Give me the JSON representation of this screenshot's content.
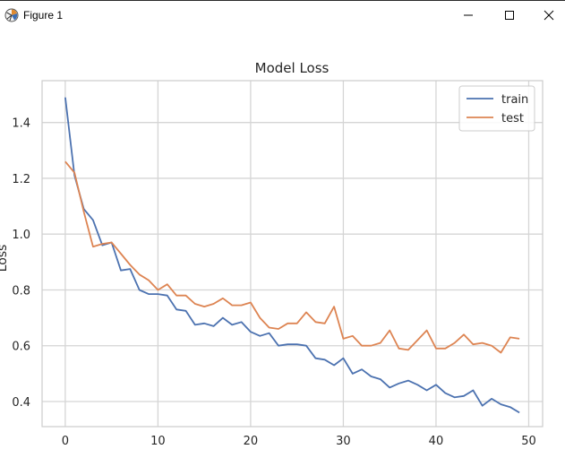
{
  "window": {
    "title": "Figure 1",
    "icons": {
      "app": "matplotlib-figure-icon",
      "minimize": "minimize-icon",
      "maximize": "maximize-icon",
      "close": "close-icon"
    }
  },
  "chart_data": {
    "type": "line",
    "title": "Model Loss",
    "xlabel": "",
    "ylabel": "Loss",
    "xlim": [
      -2.5,
      51.5
    ],
    "ylim": [
      0.31,
      1.55
    ],
    "xticks": [
      0,
      10,
      20,
      30,
      40,
      50
    ],
    "yticks": [
      0.4,
      0.6,
      0.8,
      1.0,
      1.2,
      1.4
    ],
    "ytick_labels": [
      "0.4",
      "0.6",
      "0.8",
      "1.0",
      "1.2",
      "1.4"
    ],
    "grid": true,
    "legend_position": "top-right",
    "x": [
      0,
      1,
      2,
      3,
      4,
      5,
      6,
      7,
      8,
      9,
      10,
      11,
      12,
      13,
      14,
      15,
      16,
      17,
      18,
      19,
      20,
      21,
      22,
      23,
      24,
      25,
      26,
      27,
      28,
      29,
      30,
      31,
      32,
      33,
      34,
      35,
      36,
      37,
      38,
      39,
      40,
      41,
      42,
      43,
      44,
      45,
      46,
      47,
      48,
      49
    ],
    "series": [
      {
        "name": "train",
        "color": "#4c72b0",
        "values": [
          1.49,
          1.21,
          1.09,
          1.05,
          0.96,
          0.97,
          0.87,
          0.875,
          0.8,
          0.785,
          0.785,
          0.78,
          0.73,
          0.725,
          0.675,
          0.68,
          0.67,
          0.7,
          0.675,
          0.685,
          0.65,
          0.635,
          0.645,
          0.6,
          0.605,
          0.605,
          0.6,
          0.555,
          0.55,
          0.53,
          0.555,
          0.5,
          0.515,
          0.49,
          0.48,
          0.45,
          0.465,
          0.475,
          0.46,
          0.44,
          0.46,
          0.43,
          0.415,
          0.42,
          0.44,
          0.385,
          0.41,
          0.39,
          0.38,
          0.36
        ]
      },
      {
        "name": "test",
        "color": "#dd8452",
        "values": [
          1.26,
          1.22,
          1.08,
          0.955,
          0.965,
          0.97,
          0.93,
          0.89,
          0.855,
          0.835,
          0.8,
          0.82,
          0.78,
          0.78,
          0.75,
          0.74,
          0.75,
          0.77,
          0.745,
          0.745,
          0.755,
          0.7,
          0.665,
          0.66,
          0.68,
          0.68,
          0.72,
          0.685,
          0.68,
          0.74,
          0.625,
          0.635,
          0.6,
          0.6,
          0.61,
          0.655,
          0.59,
          0.585,
          0.62,
          0.655,
          0.59,
          0.59,
          0.61,
          0.64,
          0.605,
          0.61,
          0.6,
          0.575,
          0.63,
          0.625
        ]
      }
    ]
  }
}
